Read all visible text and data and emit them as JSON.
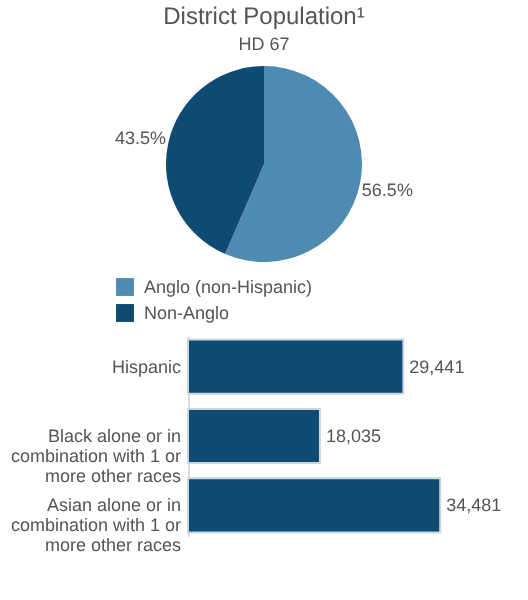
{
  "chart_data": [
    {
      "type": "pie",
      "title": "District Population¹",
      "subtitle": "HD 67",
      "categories": [
        "Anglo (non-Hispanic)",
        "Non-Anglo"
      ],
      "values": [
        56.5,
        43.5
      ],
      "colors": [
        "#4f8ab0",
        "#0e4a71"
      ],
      "value_labels": [
        "56.5%",
        "43.5%"
      ],
      "legend": "bottom"
    },
    {
      "type": "bar",
      "orientation": "horizontal",
      "categories": [
        "Hispanic",
        "Black alone or in combination with 1 or more other races",
        "Asian alone or in combination with 1 or more other races"
      ],
      "values": [
        29441,
        18035,
        34481
      ],
      "color": "#0e4a71",
      "value_labels": [
        "29,441",
        "18,035",
        "34,481"
      ]
    }
  ]
}
